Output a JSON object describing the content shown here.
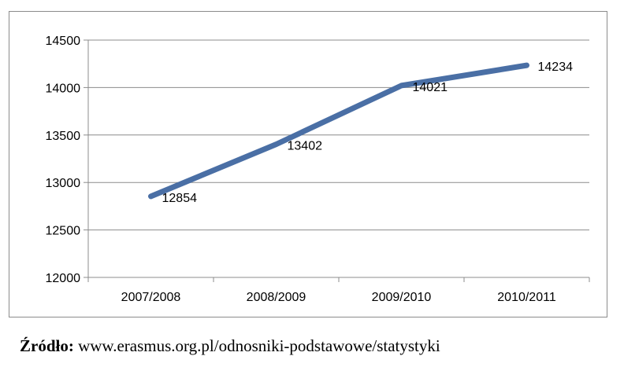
{
  "chart_data": {
    "type": "line",
    "categories": [
      "2007/2008",
      "2008/2009",
      "2009/2010",
      "2010/2011"
    ],
    "series": [
      {
        "values": [
          12854,
          13402,
          14021,
          14234
        ],
        "color": "#4a6fa5"
      }
    ],
    "ylim": [
      12000,
      14500
    ],
    "yticks": [
      12000,
      12500,
      13000,
      13500,
      14000,
      14500
    ],
    "grid": true,
    "data_labels": true
  },
  "source": {
    "label": "Źródło:",
    "text": "www.erasmus.org.pl/odnosniki-podstawowe/statystyki"
  }
}
